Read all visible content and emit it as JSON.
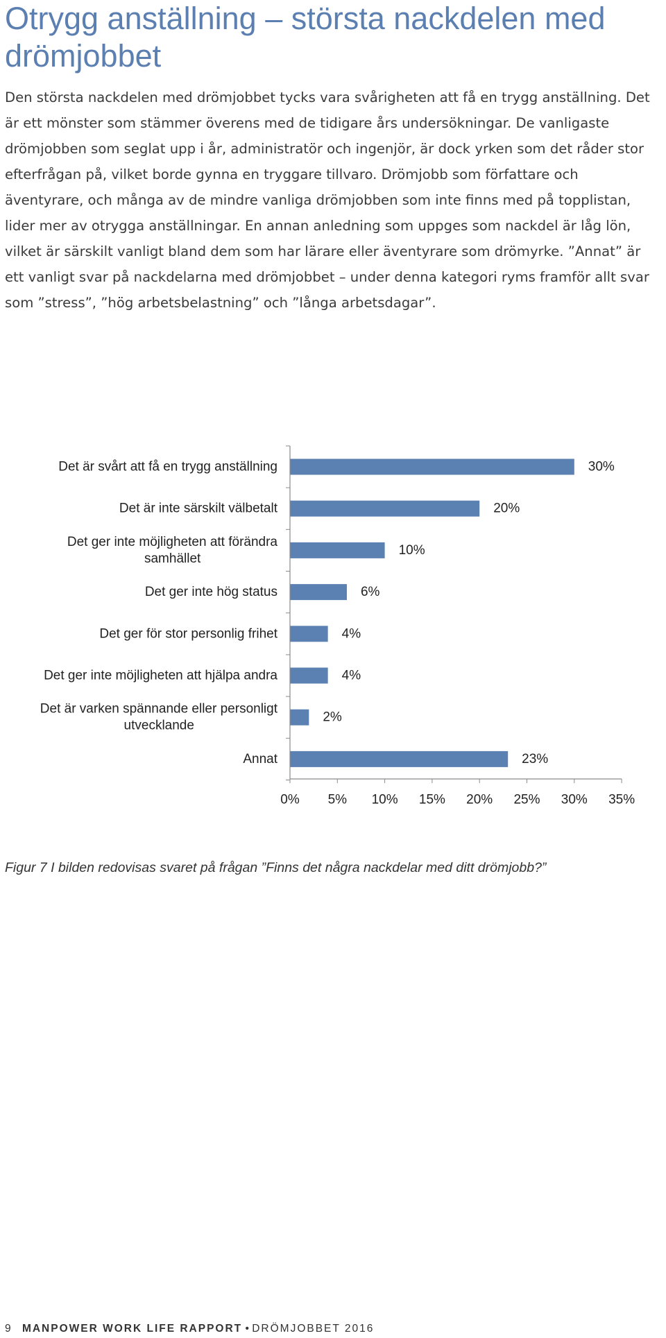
{
  "document": {
    "title": "Otrygg anställning – största nackdelen med drömjobbet",
    "body": "Den största nackdelen med drömjobbet tycks vara svårigheten att få en trygg anställning. Det är ett mönster som stämmer överens med de tidigare års undersökningar. De vanligaste drömjobben som seglat upp i år, administratör och ingenjör, är dock yrken som det råder stor efterfrågan på, vilket borde gynna en tryggare tillvaro. Drömjobb som författare och äventyrare, och många av de mindre vanliga drömjobben som inte finns med på topplistan, lider mer av otrygga anställningar. En annan anledning som uppges som nackdel är låg lön, vilket är särskilt vanligt bland dem som har lärare eller äventyrare som drömyrke. ”Annat” är ett vanligt svar på nackdelarna med drömjobbet – under denna kategori ryms framför allt svar som ”stress”, ”hög arbetsbelastning” och ”långa arbetsdagar”.",
    "caption": "Figur 7 I bilden redovisas svaret på frågan ”Finns det några nackdelar med ditt drömjobb?”"
  },
  "footer": {
    "page_number": "9",
    "brand": "MANPOWER WORK LIFE RAPPORT",
    "separator": "•",
    "subtitle": "DRÖMJOBBET 2016"
  },
  "chart_data": {
    "type": "bar",
    "orientation": "horizontal",
    "categories": [
      [
        "Det är svårt att få en trygg anställning"
      ],
      [
        "Det är inte särskilt välbetalt"
      ],
      [
        "Det ger inte möjligheten att förändra",
        "samhället"
      ],
      [
        "Det ger inte hög status"
      ],
      [
        "Det ger för stor personlig frihet"
      ],
      [
        "Det ger inte möjligheten att hjälpa andra"
      ],
      [
        "Det är varken spännande eller personligt",
        "utvecklande"
      ],
      [
        "Annat"
      ]
    ],
    "values": [
      30,
      20,
      10,
      6,
      4,
      4,
      2,
      23
    ],
    "value_labels": [
      "30%",
      "20%",
      "10%",
      "6%",
      "4%",
      "4%",
      "2%",
      "23%"
    ],
    "x_ticks": [
      "0%",
      "5%",
      "10%",
      "15%",
      "20%",
      "25%",
      "30%",
      "35%"
    ],
    "xlim": [
      0,
      35
    ],
    "bar_color": "#5b80b2",
    "grid": false,
    "legend": "none"
  }
}
